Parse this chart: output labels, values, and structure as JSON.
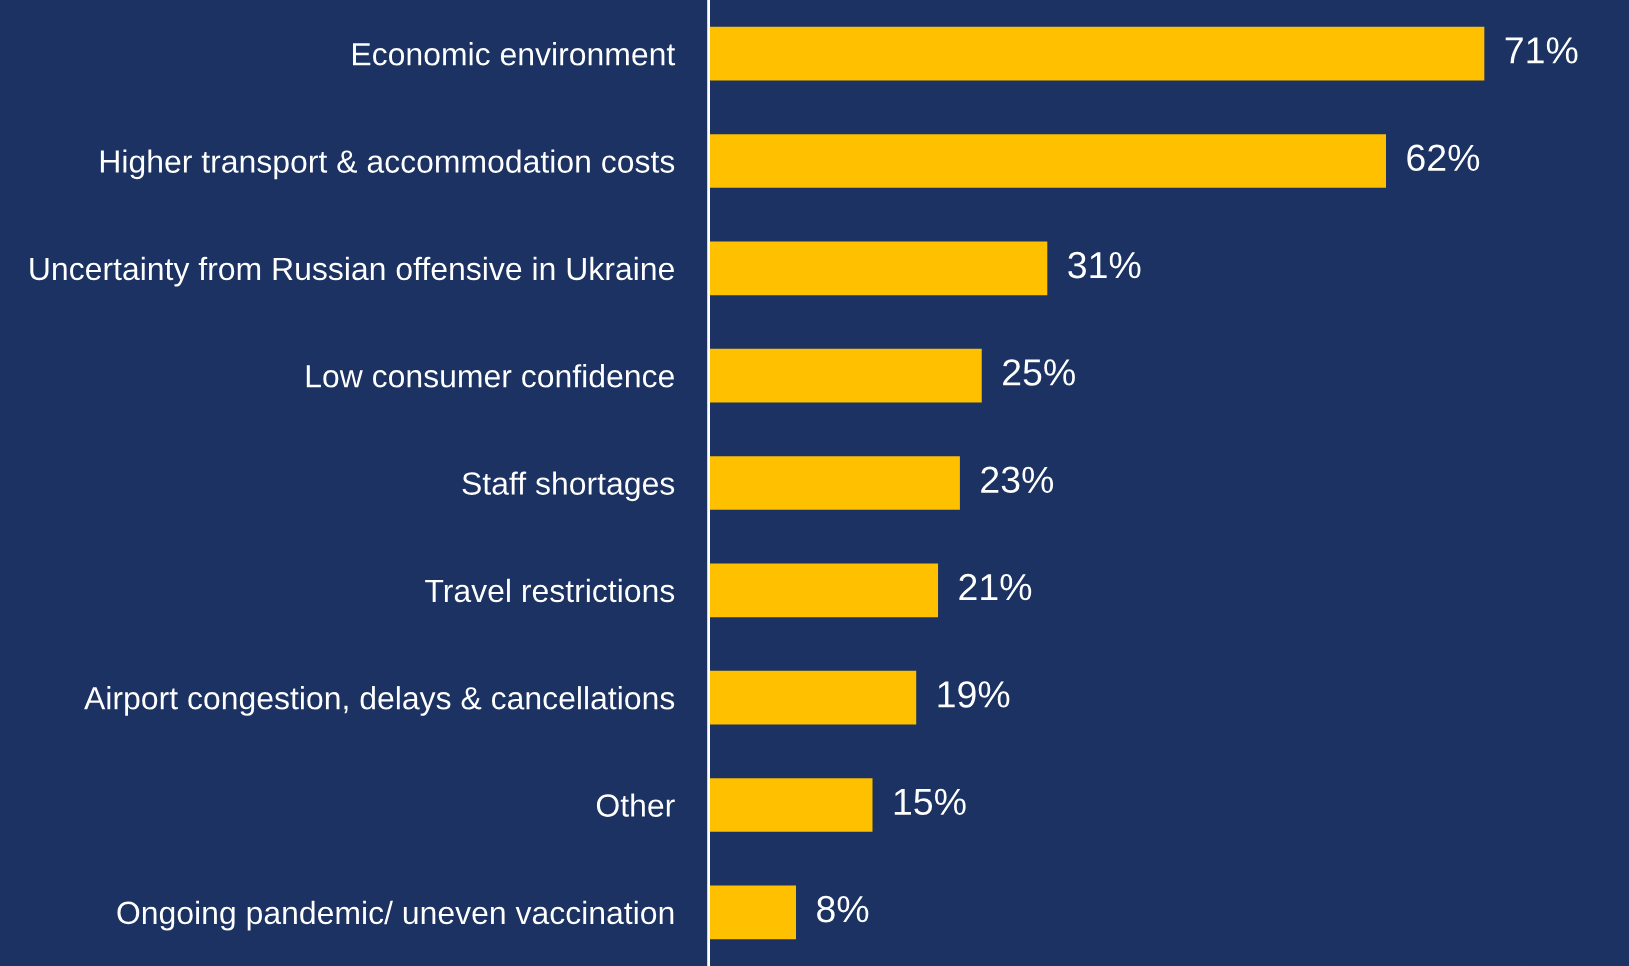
{
  "chart_data": {
    "type": "bar",
    "orientation": "horizontal",
    "categories": [
      "Economic environment",
      "Higher transport & accommodation costs",
      "Uncertainty from Russian offensive in Ukraine",
      "Low consumer confidence",
      "Staff shortages",
      "Travel restrictions",
      "Airport congestion, delays & cancellations",
      "Other",
      "Ongoing pandemic/ uneven vaccination"
    ],
    "values": [
      71,
      62,
      31,
      25,
      23,
      21,
      19,
      15,
      8
    ],
    "value_labels": [
      "71%",
      "62%",
      "31%",
      "25%",
      "23%",
      "21%",
      "19%",
      "15%",
      "8%"
    ],
    "color": "#ffc000",
    "grid": false,
    "legend": false,
    "tick_labels": "y"
  }
}
